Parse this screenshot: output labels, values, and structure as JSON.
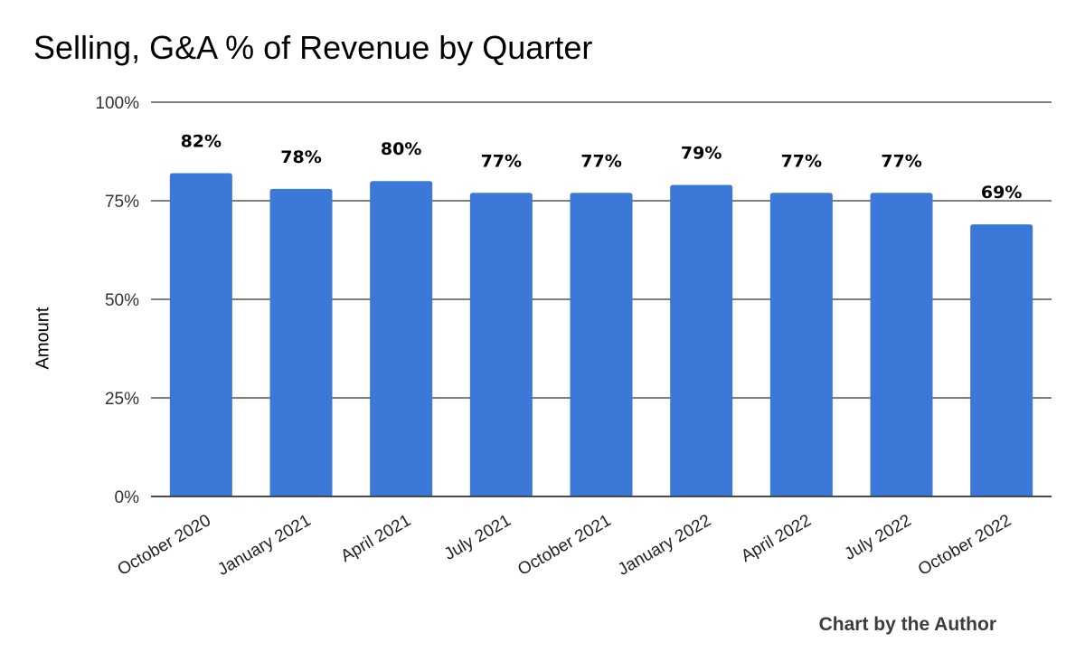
{
  "chart_data": {
    "type": "bar",
    "title": "Selling, G&A % of Revenue by Quarter",
    "xlabel": "",
    "ylabel": "Amount",
    "categories": [
      "October 2020",
      "January 2021",
      "April 2021",
      "July 2021",
      "October 2021",
      "January 2022",
      "April 2022",
      "July 2022",
      "October 2022"
    ],
    "values": [
      82,
      78,
      80,
      77,
      77,
      79,
      77,
      77,
      69
    ],
    "data_labels": [
      "82%",
      "78%",
      "80%",
      "77%",
      "77%",
      "79%",
      "77%",
      "77%",
      "69%"
    ],
    "ylim": [
      0,
      100
    ],
    "yticks": [
      0,
      25,
      50,
      75,
      100
    ],
    "ytick_labels": [
      "0%",
      "25%",
      "50%",
      "75%",
      "100%"
    ],
    "grid": true,
    "legend": "none",
    "bar_color": "#3c78d8",
    "gridline_color": "#333333"
  },
  "credit": "Chart by the Author"
}
